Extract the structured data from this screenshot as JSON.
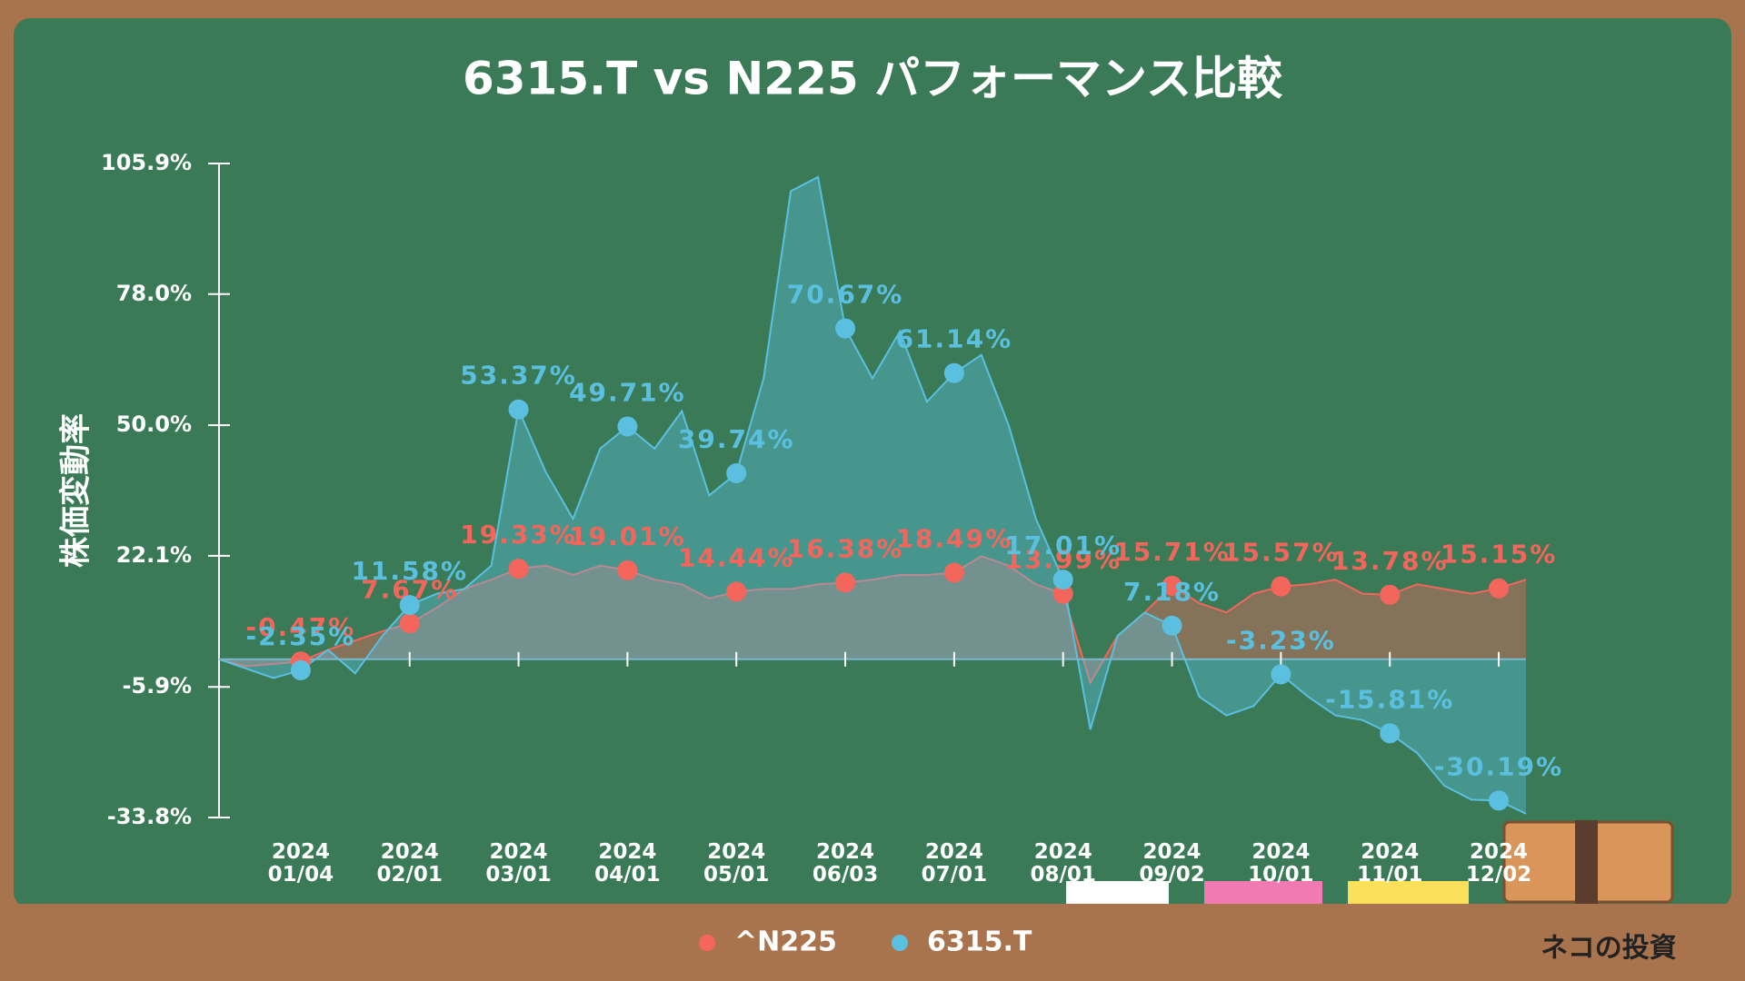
{
  "chart_data": {
    "type": "line",
    "title": "6315.T vs N225 パフォーマンス比較",
    "y_label": "株価変動率",
    "watermark": "ネコの投資",
    "categories": [
      null,
      null,
      null,
      "2024 01/04",
      null,
      null,
      null,
      "2024 02/01",
      null,
      null,
      null,
      "2024 03/01",
      null,
      null,
      null,
      "2024 04/01",
      null,
      null,
      null,
      "2024 05/01",
      null,
      null,
      null,
      "2024 06/03",
      null,
      null,
      null,
      "2024 07/01",
      null,
      null,
      null,
      "2024 08/01",
      null,
      null,
      null,
      "2024 09/02",
      null,
      null,
      null,
      "2024 10/01",
      null,
      null,
      null,
      "2024 11/01",
      null,
      null,
      null,
      "2024 12/02",
      null
    ],
    "series": [
      {
        "name": "^N225",
        "color": "#f4665c",
        "values": [
          0,
          -1.5,
          -1,
          -0.47,
          2,
          4,
          6,
          7.67,
          11,
          15,
          17,
          19.33,
          20,
          18,
          20,
          19.01,
          17,
          16,
          13,
          14.44,
          15,
          15,
          16,
          16.38,
          17,
          18,
          18,
          18.49,
          22,
          20,
          16,
          13.99,
          -5,
          5,
          10,
          15.71,
          12,
          10,
          14,
          15.57,
          16,
          17,
          14,
          13.78,
          16,
          15,
          14,
          15.15,
          17
        ],
        "value_labels": [
          null,
          null,
          null,
          "-0.47%",
          null,
          null,
          null,
          "7.67%",
          null,
          null,
          null,
          "19.33%",
          null,
          null,
          null,
          "19.01%",
          null,
          null,
          null,
          "14.44%",
          null,
          null,
          null,
          "16.38%",
          null,
          null,
          null,
          "18.49%",
          null,
          null,
          null,
          "13.99%",
          null,
          null,
          null,
          "15.71%",
          null,
          null,
          null,
          "15.57%",
          null,
          null,
          null,
          "13.78%",
          null,
          null,
          null,
          "15.15%",
          null
        ]
      },
      {
        "name": "6315.T",
        "color": "#5bc0e0",
        "values": [
          0,
          -2,
          -4,
          -2.35,
          2,
          -3,
          5,
          11.58,
          14,
          15,
          20,
          53.37,
          40,
          30,
          45,
          49.71,
          45,
          53,
          35,
          39.74,
          60,
          100,
          103,
          70.67,
          60,
          70,
          55,
          61.14,
          65,
          50,
          30,
          17.01,
          -15,
          5,
          10,
          7.18,
          -8,
          -12,
          -10,
          -3.23,
          -8,
          -12,
          -13,
          -15.81,
          -20,
          -27,
          -30,
          -30.19,
          -33
        ],
        "value_labels": [
          null,
          null,
          null,
          "-2.35%",
          null,
          null,
          null,
          "11.58%",
          null,
          null,
          null,
          "53.37%",
          null,
          null,
          null,
          "49.71%",
          null,
          null,
          null,
          "39.74%",
          null,
          null,
          null,
          "70.67%",
          null,
          null,
          null,
          "61.14%",
          null,
          null,
          null,
          "17.01%",
          null,
          null,
          null,
          "7.18%",
          null,
          null,
          null,
          "-3.23%",
          null,
          null,
          null,
          "-15.81%",
          null,
          null,
          null,
          "-30.19%",
          null
        ]
      }
    ],
    "ylim": [
      -33.8,
      105.9
    ],
    "yticks": [
      {
        "value": -33.8,
        "label": "-33.8%"
      },
      {
        "value": -5.9,
        "label": "-5.9%"
      },
      {
        "value": 22.1,
        "label": "22.1%"
      },
      {
        "value": 50.0,
        "label": "50.0%"
      },
      {
        "value": 78.0,
        "label": "78.0%"
      },
      {
        "value": 105.9,
        "label": "105.9%"
      }
    ],
    "legend": "bottom"
  }
}
